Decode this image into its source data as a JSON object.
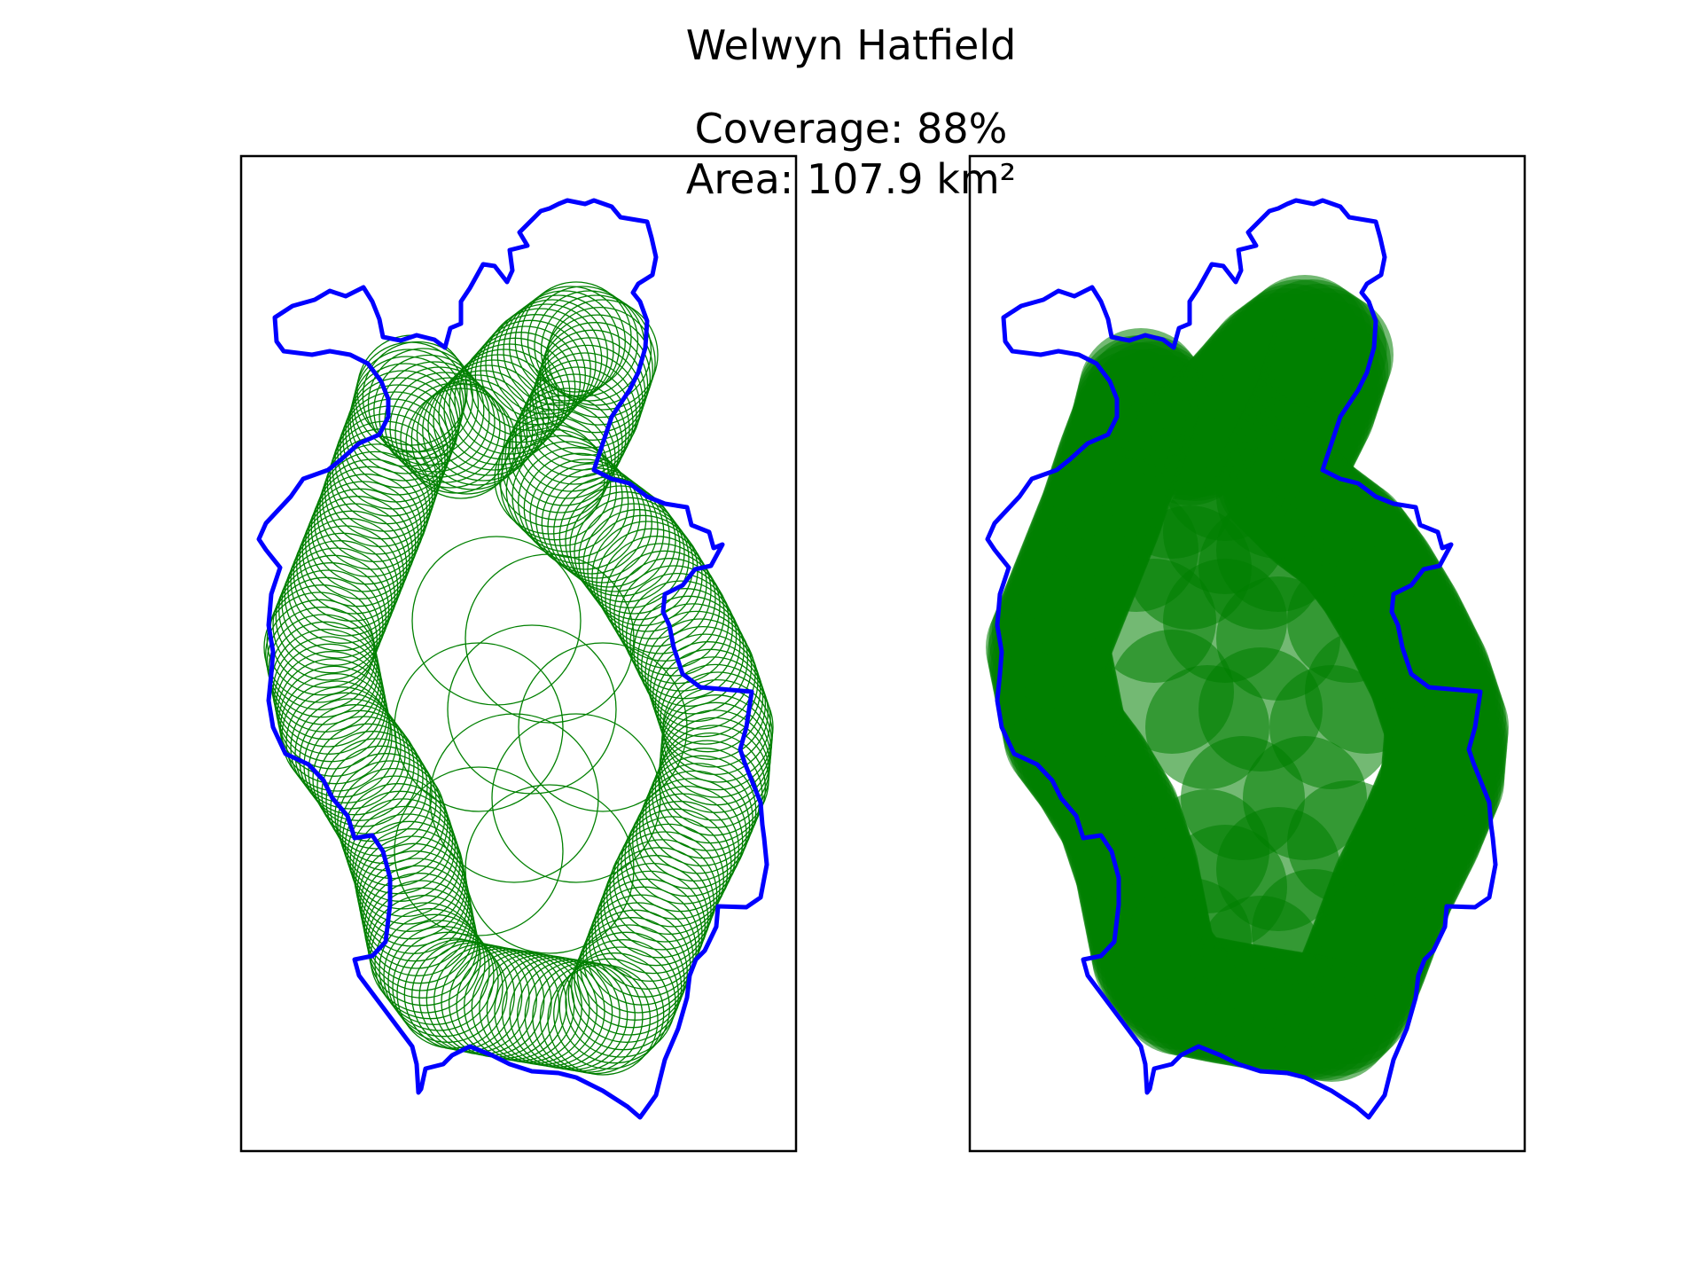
{
  "figure": {
    "title": "Welwyn Hatfield",
    "subtitle_line1": "Coverage: 88%",
    "subtitle_line2": "Area: 107.9 km²"
  },
  "panels": [
    {
      "name": "circle-outlines",
      "style": "outline"
    },
    {
      "name": "circle-filled",
      "style": "filled"
    }
  ],
  "colors": {
    "boundary": "#0000ff",
    "coverage": "#008000",
    "frame": "#000000"
  }
}
